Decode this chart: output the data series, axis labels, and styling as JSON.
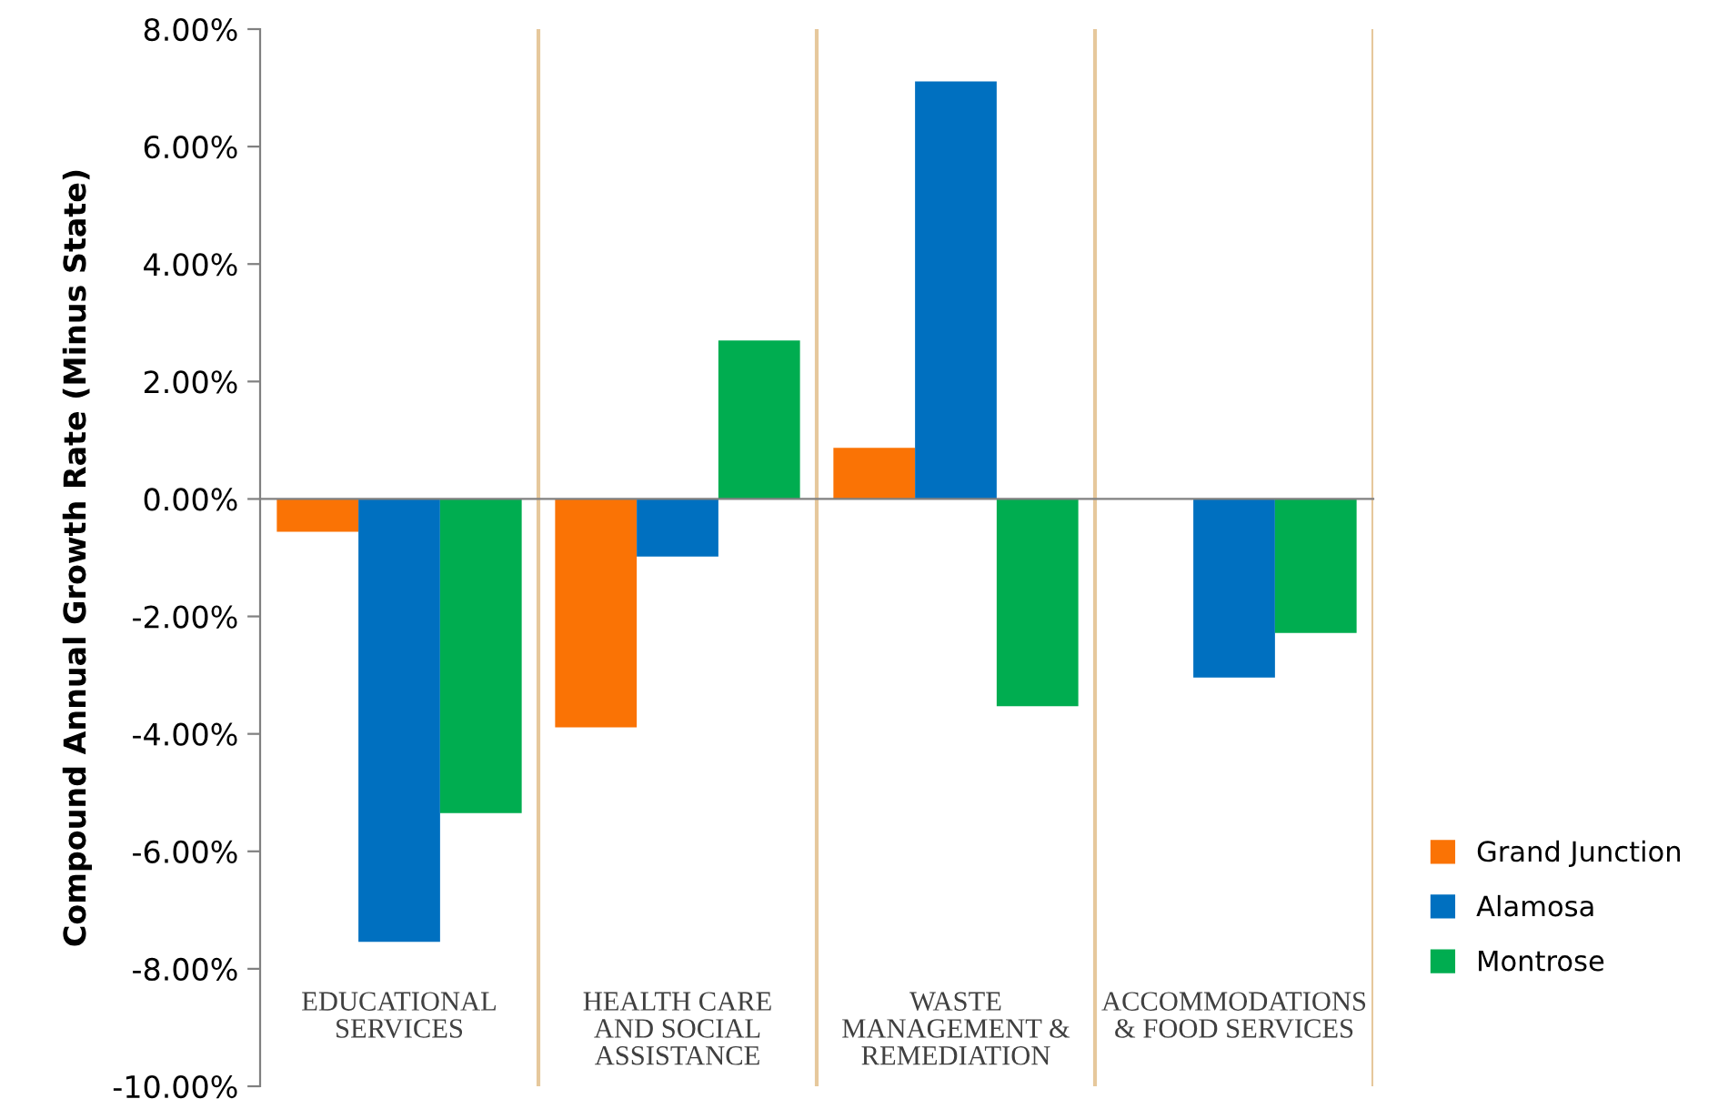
{
  "chart_data": {
    "type": "bar",
    "ylabel": "Compound Annual Growth Rate (Minus State)",
    "categories": [
      "EDUCATIONAL SERVICES",
      "HEALTH CARE AND SOCIAL ASSISTANCE",
      "WASTE MANAGEMENT & REMEDIATION",
      "ACCOMMODATIONS & FOOD SERVICES"
    ],
    "series": [
      {
        "name": "Grand Junction",
        "color": "#fa7305",
        "values": [
          -0.56,
          -3.89,
          0.87,
          null
        ]
      },
      {
        "name": "Alamosa",
        "color": "#0070c0",
        "values": [
          -7.54,
          -0.98,
          7.11,
          -3.04
        ]
      },
      {
        "name": "Montrose",
        "color": "#00ad50",
        "values": [
          -5.35,
          2.7,
          -3.53,
          -2.28
        ]
      }
    ],
    "ylim": [
      -10,
      8
    ],
    "yticks": [
      {
        "value": -10,
        "label": "-10.00%"
      },
      {
        "value": -8,
        "label": "-8.00%"
      },
      {
        "value": -6,
        "label": "-6.00%"
      },
      {
        "value": -4,
        "label": "-4.00%"
      },
      {
        "value": -2,
        "label": "-2.00%"
      },
      {
        "value": 0,
        "label": "0.00%"
      },
      {
        "value": 2,
        "label": "2.00%"
      },
      {
        "value": 4,
        "label": "4.00%"
      },
      {
        "value": 6,
        "label": "6.00%"
      },
      {
        "value": 8,
        "label": "8.00%"
      }
    ],
    "grid": "x",
    "legend": "bottom right"
  }
}
